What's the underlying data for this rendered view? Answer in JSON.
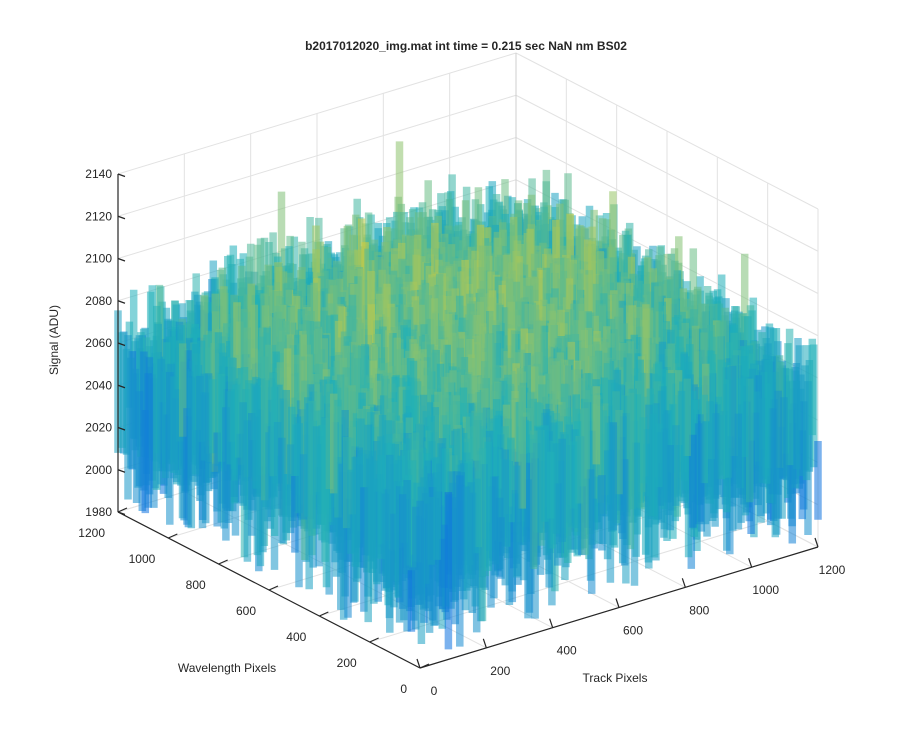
{
  "chart_data": {
    "type": "surface",
    "title": "b2017012020_img.mat int time = 0.215 sec  NaN nm BS02",
    "xlabel": "Track Pixels",
    "ylabel": "Wavelength Pixels",
    "zlabel": "Signal (ADU)",
    "xlim": [
      0,
      1200
    ],
    "ylim": [
      0,
      1200
    ],
    "zlim": [
      1980,
      2140
    ],
    "xticks": [
      0,
      200,
      400,
      600,
      800,
      1000,
      1200
    ],
    "yticks": [
      0,
      200,
      400,
      600,
      800,
      1000,
      1200
    ],
    "zticks": [
      1980,
      2000,
      2020,
      2040,
      2060,
      2080,
      2100,
      2120,
      2140
    ],
    "grid": true,
    "colormap": "parula",
    "surface_stats": {
      "approx_mean_signal": 2040,
      "approx_noise_range": [
        1985,
        2135
      ],
      "peak_region": "centre / back, near x=600, y=600"
    },
    "colors": {
      "low": "#0f72e0",
      "mid": "#1fb0b8",
      "high": "#d8cf3a",
      "axis": "#262626",
      "grid": "#e2e2e2"
    }
  }
}
